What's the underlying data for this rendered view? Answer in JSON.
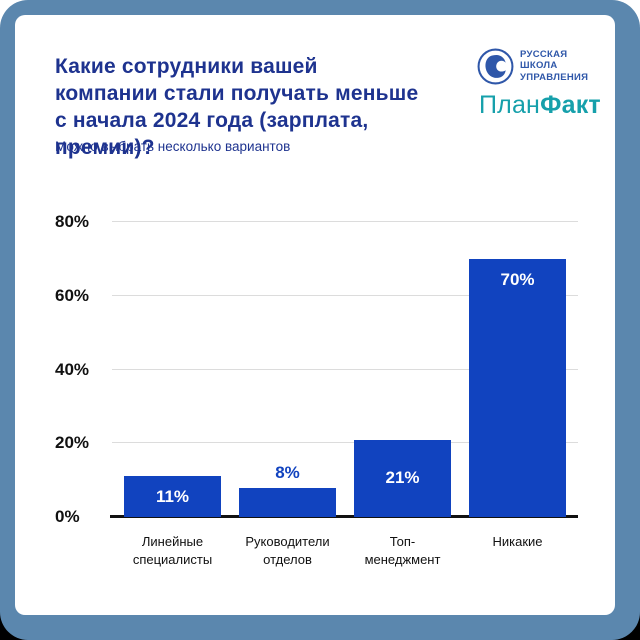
{
  "frame": {
    "border_color": "#5b87ae",
    "card_bg": "#ffffff",
    "bottom_band_color": "#000000"
  },
  "header": {
    "title_lines": [
      "Какие сотрудники вашей",
      "компании стали получать меньше",
      "с начала 2024 года (зарплата, премии)?"
    ],
    "subtitle": "Можно выбрать несколько вариантов",
    "title_color": "#1e338f"
  },
  "logos": {
    "rsu": {
      "line1": "РУССКАЯ",
      "line2": "ШКОЛА",
      "line3": "УПРАВЛЕНИЯ",
      "color": "#2f57a9",
      "icon": "rsu-face-circle-logo"
    },
    "planfact": {
      "part1": "План",
      "part2": "Факт",
      "color": "#16a0ab"
    }
  },
  "chart_data": {
    "type": "bar",
    "title": "Какие сотрудники вашей компании стали получать меньше с начала 2024 года (зарплата, премии)?",
    "subtitle": "Можно выбрать несколько вариантов",
    "categories": [
      "Линейные специалисты",
      "Руководители отделов",
      "Топ-менеджмент",
      "Никакие"
    ],
    "category_lines": [
      [
        "Линейные",
        "специалисты"
      ],
      [
        "Руководители",
        "отделов"
      ],
      [
        "Топ-",
        "менеджмент"
      ],
      [
        "Никакие"
      ]
    ],
    "values": [
      11,
      8,
      21,
      70
    ],
    "value_labels": [
      "11%",
      "8%",
      "21%",
      "70%"
    ],
    "y_ticks": [
      0,
      20,
      40,
      60,
      80
    ],
    "y_tick_labels": [
      "0%",
      "20%",
      "40%",
      "60%",
      "80%"
    ],
    "ylim": [
      0,
      80
    ],
    "xlabel": "",
    "ylabel": "",
    "grid": true,
    "legend": false,
    "bar_color": "#1143bf",
    "value_label_inside_color": "#ffffff",
    "value_label_outside_color": "#1143bf"
  }
}
